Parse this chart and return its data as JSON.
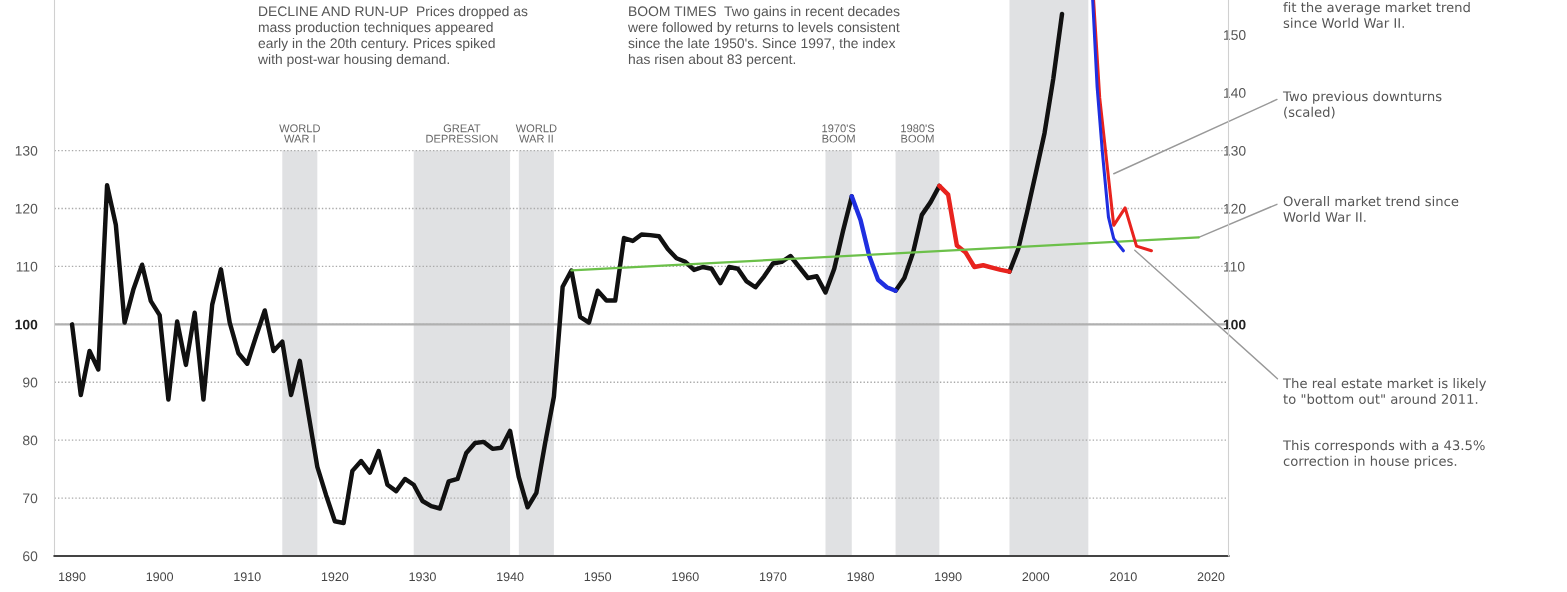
{
  "chart_data": {
    "type": "line",
    "xlim": [
      1888,
      2022
    ],
    "xticks": [
      1890,
      1900,
      1910,
      1920,
      1930,
      1940,
      1950,
      1960,
      1970,
      1980,
      1990,
      2000,
      2010,
      2020
    ],
    "ylim": [
      60,
      156
    ],
    "yticks": [
      60,
      70,
      80,
      90,
      100,
      110,
      120,
      130
    ],
    "y2lim": [
      60,
      156
    ],
    "y2ticks": [
      100,
      110,
      120,
      130,
      140,
      150
    ],
    "grid": "y",
    "legend": false,
    "line_style": "solid",
    "marker": "none",
    "series": [
      {
        "color": "#111111",
        "x": [
          1890,
          1891,
          1892,
          1893,
          1894,
          1895,
          1896,
          1897,
          1898,
          1899,
          1900,
          1901,
          1902,
          1903,
          1904,
          1905,
          1906,
          1907,
          1908,
          1909,
          1910,
          1911,
          1912,
          1913,
          1914,
          1915,
          1916,
          1917,
          1918,
          1919,
          1920,
          1921,
          1922,
          1923,
          1924,
          1925,
          1926,
          1927,
          1928,
          1929,
          1930,
          1931,
          1932,
          1933,
          1934,
          1935,
          1936,
          1937,
          1938,
          1939,
          1940,
          1941,
          1942,
          1943,
          1944,
          1945,
          1946,
          1947,
          1948,
          1949,
          1950,
          1951,
          1952,
          1953,
          1954,
          1955,
          1956,
          1957,
          1958,
          1959,
          1960,
          1961,
          1962,
          1963,
          1964,
          1965,
          1966,
          1967,
          1968,
          1969,
          1970,
          1971,
          1972,
          1973,
          1974,
          1975,
          1976,
          1977,
          1978,
          1979,
          1980,
          1981,
          1982,
          1983,
          1984,
          1985,
          1986,
          1987,
          1988,
          1989,
          1990,
          1991,
          1992,
          1993,
          1994,
          1995,
          1996,
          1997,
          1998,
          1999,
          2000,
          2001,
          2002,
          2003
        ],
        "values": [
          100,
          87.8,
          95.4,
          92.2,
          124,
          117.2,
          100.3,
          106,
          110.3,
          104,
          101.6,
          87,
          100.5,
          93,
          102,
          87,
          103.4,
          109.5,
          100.3,
          95,
          93.2,
          97.9,
          102.4,
          95.4,
          97,
          87.8,
          93.7,
          84.4,
          75.4,
          70.5,
          66,
          65.7,
          74.7,
          76.4,
          74.4,
          78.1,
          72.3,
          71.2,
          73.3,
          72.3,
          69.5,
          68.6,
          68.2,
          72.9,
          73.3,
          77.8,
          79.5,
          79.7,
          78.5,
          78.7,
          81.6,
          73.6,
          68.4,
          70.9,
          79.5,
          87.5,
          106.5,
          109.3,
          101.3,
          100.3,
          105.8,
          104.1,
          104.1,
          114.9,
          114.4,
          115.5,
          115.4,
          115.2,
          113,
          111.4,
          110.8,
          109.4,
          109.9,
          109.6,
          107.1,
          109.9,
          109.6,
          107.4,
          106.4,
          108.3,
          110.5,
          110.8,
          111.8,
          109.9,
          108,
          108.3,
          105.5,
          109.6,
          116.1,
          122.1,
          null,
          null,
          null,
          null,
          105.8,
          108,
          112.4,
          118.9,
          121.1,
          123.9,
          null,
          null,
          null,
          null,
          null,
          null,
          null,
          109.1,
          113,
          119.3,
          126.1,
          133,
          142.4,
          153.6
        ]
      },
      {
        "color": "#1f2fe0",
        "x": [
          1979,
          1980,
          1981,
          1982,
          1983,
          1984
        ],
        "values": [
          122.1,
          118,
          111.8,
          107.7,
          106.4,
          105.8
        ]
      },
      {
        "color": "#e8231e",
        "x": [
          1989,
          1990,
          1991,
          1992,
          1993,
          1994,
          1995,
          1996,
          1997
        ],
        "values": [
          123.9,
          122.4,
          113.6,
          112.4,
          109.9,
          110.2,
          109.8,
          109.4,
          109.1
        ]
      },
      {
        "color": "#6cc04a",
        "x": [
          1947,
          2018.6
        ],
        "values": [
          109.3,
          115
        ]
      },
      {
        "color": "#e8231e",
        "x": [
          2006.6,
          2007.3,
          2008.9,
          2010.2,
          2011.5,
          2013.2
        ],
        "values": [
          156,
          139.1,
          117.1,
          120.1,
          113.5,
          112.7
        ]
      },
      {
        "color": "#1f2fe0",
        "x": [
          2006.5,
          2007.0,
          2007.6,
          2008.3,
          2008.9,
          2010.0
        ],
        "values": [
          156,
          141.1,
          129.8,
          118.5,
          114.8,
          112.7
        ]
      }
    ],
    "bands": [
      {
        "axis": "x",
        "from": 1914,
        "to": 1918,
        "label": "WORLD\nWAR I",
        "color": "#e0e1e3"
      },
      {
        "axis": "x",
        "from": 1929,
        "to": 1940,
        "label": "GREAT\nDEPRESSION",
        "color": "#e0e1e3"
      },
      {
        "axis": "x",
        "from": 1941,
        "to": 1945,
        "label": "WORLD\nWAR II",
        "color": "#e0e1e3"
      },
      {
        "axis": "x",
        "from": 1976,
        "to": 1979,
        "label": "1970'S\nBOOM",
        "color": "#e0e1e3"
      },
      {
        "axis": "x",
        "from": 1984,
        "to": 1989,
        "label": "1980'S\nBOOM",
        "color": "#e0e1e3"
      },
      {
        "axis": "x",
        "from": 1997,
        "to": 2006,
        "label": null,
        "color": "#e0e1e3"
      }
    ],
    "ref_lines": [
      {
        "axis": "y",
        "value": 100,
        "color": "#b0b0b0"
      }
    ],
    "annotations": [
      "DECLINE AND RUN-UP  Prices dropped as\nmass production techniques appeared\nearly in the 20th century. Prices spiked\nwith post-war housing demand.",
      "BOOM TIMES  Two gains in recent decades\nwere followed by returns to levels consistent\nsince the late 1950's. Since 1997, the index\nhas risen about 83 percent.",
      "fit the average market trend\nsince World War II.",
      {
        "text": "Two previous downturns\n(scaled)",
        "x": 2008.9,
        "y": 126
      },
      {
        "text": "Overall market trend since\nWorld War II.",
        "x": 2018.6,
        "y": 115
      },
      {
        "text": "The real estate market is likely\nto \"bottom out\" around 2011.",
        "x": 2011.3,
        "y": 112.8
      },
      "This corresponds with a 43.5%\ncorrection in house prices."
    ]
  }
}
